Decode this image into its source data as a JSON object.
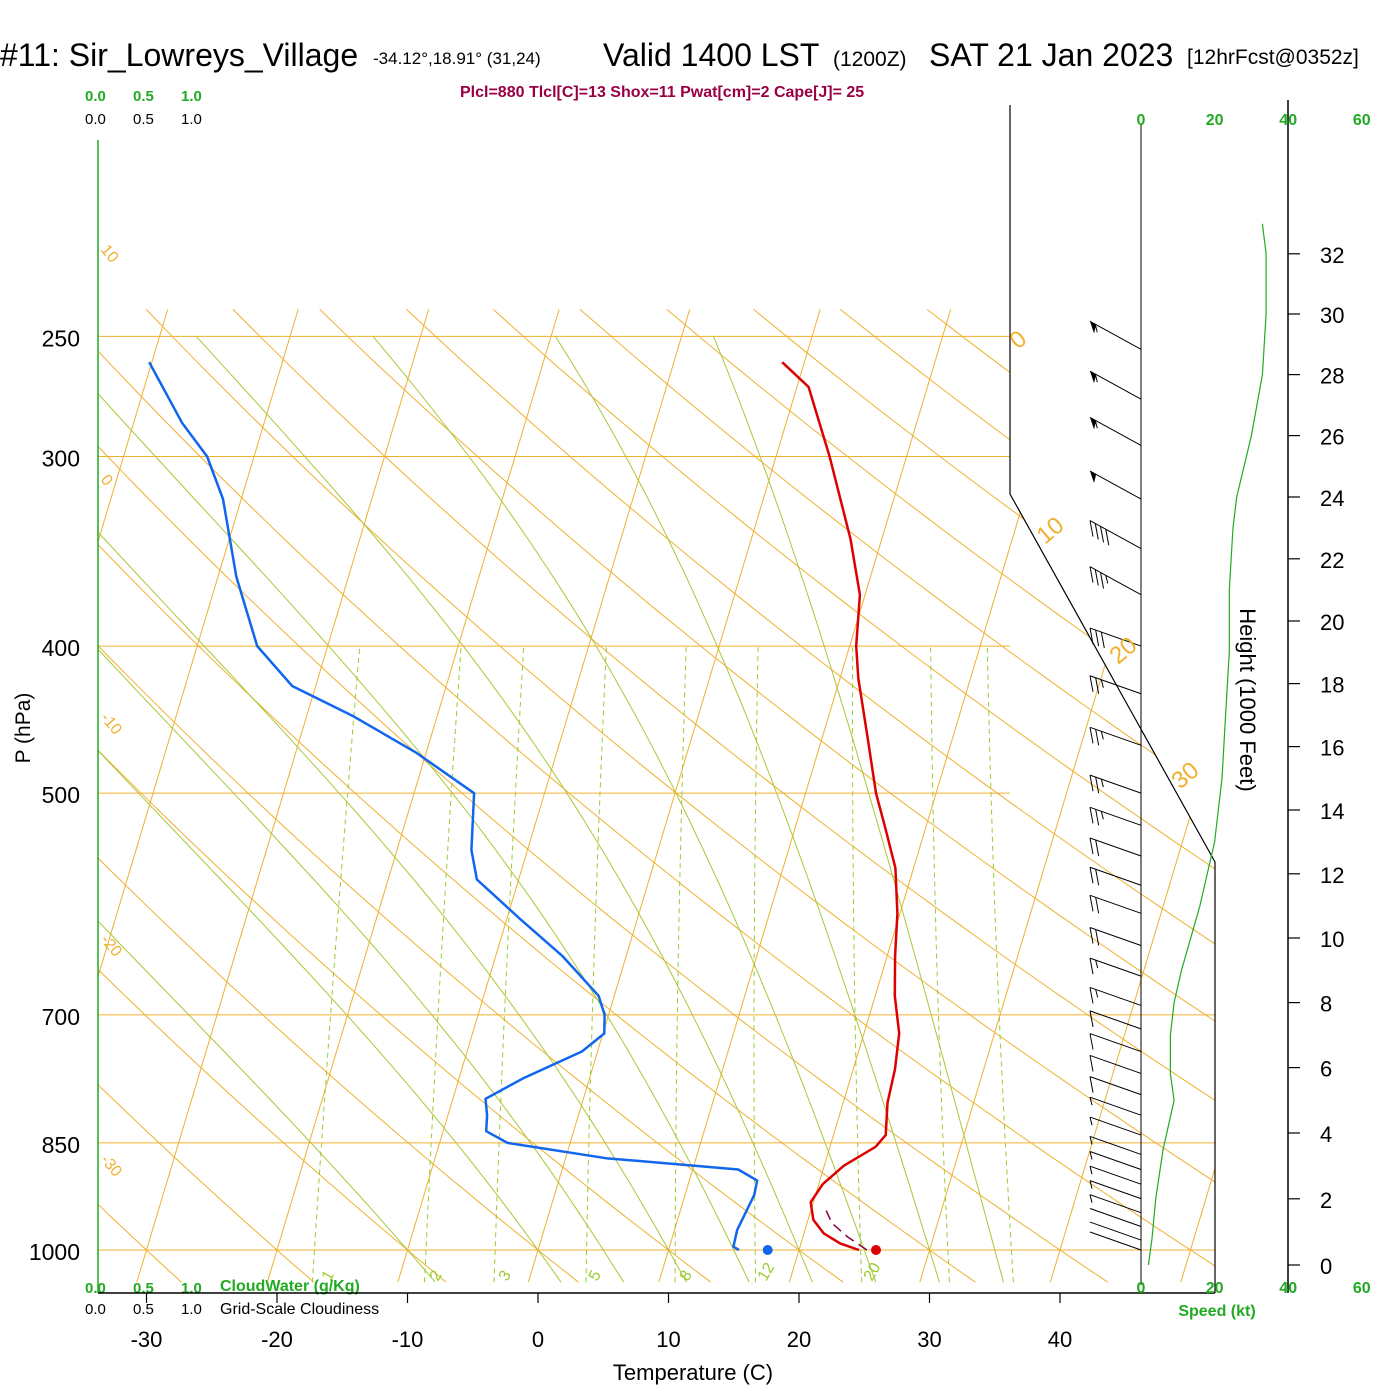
{
  "header": {
    "station": "#11: Sir_Lowreys_Village",
    "coords": "-34.12°,18.91° (31,24)",
    "valid": "Valid 1400 LST",
    "utc": "(1200Z)",
    "date": "SAT 21 Jan 2023",
    "forecast": "[12hrFcst@0352z]"
  },
  "indices": "Plcl=880 Tlcl[C]=13 Shox=11 Pwat[cm]=2 Cape[J]= 25",
  "cloud_scale": {
    "top_green": [
      "0.0",
      "0.5",
      "1.0"
    ],
    "top_black": [
      "0.0",
      "0.5",
      "1.0"
    ],
    "bottom_green": [
      "0.0",
      "0.5",
      "1.0"
    ],
    "bottom_black": [
      "0.0",
      "0.5",
      "1.0"
    ],
    "cloudwater_label": "CloudWater (g/Kg)",
    "cloudiness_label": "Grid-Scale Cloudiness"
  },
  "speed_axis": {
    "ticks": [
      "0",
      "20",
      "40",
      "60"
    ],
    "label": "Speed (kt)"
  },
  "colors": {
    "temperature": "#dd0000",
    "dewpoint": "#1166ee",
    "isobar_isotherm": "#f0b030",
    "dry_adiabat": "#a8c838",
    "mixing_ratio": "#99cc33",
    "axis_green": "#22aa22",
    "parcel": "#880044"
  },
  "chart_data": {
    "type": "line",
    "subtype": "skew-T log-P sounding",
    "xlabel": "Temperature (C)",
    "ylabel": "P (hPa)",
    "right_ylabel": "Height (1000 Feet)",
    "x_ticks": [
      "-30",
      "-20",
      "-10",
      "0",
      "10",
      "20",
      "30",
      "40"
    ],
    "p_ticks": [
      "250",
      "300",
      "400",
      "500",
      "700",
      "850",
      "1000"
    ],
    "p_values": [
      250,
      300,
      400,
      500,
      700,
      850,
      1000
    ],
    "height_ticks": [
      "32",
      "30",
      "28",
      "26",
      "24",
      "22",
      "20",
      "18",
      "16",
      "14",
      "12",
      "10",
      "8",
      "6",
      "4",
      "2",
      "0"
    ],
    "isotherm_labels": [
      "10",
      "0",
      "-10",
      "-20",
      "-30"
    ],
    "right_isotherm_labels": [
      "0",
      "10",
      "20",
      "30"
    ],
    "mixing_ratio_labels": [
      "1",
      "2",
      "3",
      "5",
      "8",
      "12",
      "20"
    ],
    "temperature_series": {
      "name": "Temperature",
      "points": [
        {
          "p": 1000,
          "t": 24.6
        },
        {
          "p": 990,
          "t": 23.0
        },
        {
          "p": 975,
          "t": 21.5
        },
        {
          "p": 955,
          "t": 20.4
        },
        {
          "p": 930,
          "t": 19.8
        },
        {
          "p": 905,
          "t": 20.3
        },
        {
          "p": 880,
          "t": 21.5
        },
        {
          "p": 855,
          "t": 23.5
        },
        {
          "p": 840,
          "t": 24.0
        },
        {
          "p": 800,
          "t": 23.4
        },
        {
          "p": 760,
          "t": 23.2
        },
        {
          "p": 720,
          "t": 22.7
        },
        {
          "p": 680,
          "t": 21.5
        },
        {
          "p": 640,
          "t": 20.6
        },
        {
          "p": 600,
          "t": 19.8
        },
        {
          "p": 560,
          "t": 18.6
        },
        {
          "p": 525,
          "t": 16.8
        },
        {
          "p": 500,
          "t": 15.4
        },
        {
          "p": 460,
          "t": 13.5
        },
        {
          "p": 420,
          "t": 11.4
        },
        {
          "p": 400,
          "t": 10.5
        },
        {
          "p": 370,
          "t": 9.6
        },
        {
          "p": 340,
          "t": 7.6
        },
        {
          "p": 300,
          "t": 4.1
        },
        {
          "p": 270,
          "t": 0.9
        },
        {
          "p": 260,
          "t": -1.7
        }
      ]
    },
    "dewpoint_series": {
      "name": "Dewpoint",
      "points": [
        {
          "p": 1000,
          "t": 15.4
        },
        {
          "p": 995,
          "t": 14.9
        },
        {
          "p": 970,
          "t": 14.8
        },
        {
          "p": 920,
          "t": 15.3
        },
        {
          "p": 900,
          "t": 15.2
        },
        {
          "p": 885,
          "t": 13.5
        },
        {
          "p": 870,
          "t": 3.1
        },
        {
          "p": 850,
          "t": -4.8
        },
        {
          "p": 835,
          "t": -6.7
        },
        {
          "p": 815,
          "t": -7.0
        },
        {
          "p": 795,
          "t": -7.5
        },
        {
          "p": 770,
          "t": -5.0
        },
        {
          "p": 740,
          "t": -1.2
        },
        {
          "p": 720,
          "t": 0.1
        },
        {
          "p": 700,
          "t": -0.3
        },
        {
          "p": 680,
          "t": -1.2
        },
        {
          "p": 640,
          "t": -4.9
        },
        {
          "p": 605,
          "t": -9.0
        },
        {
          "p": 570,
          "t": -13.2
        },
        {
          "p": 545,
          "t": -14.3
        },
        {
          "p": 520,
          "t": -14.9
        },
        {
          "p": 500,
          "t": -15.4
        },
        {
          "p": 470,
          "t": -20.8
        },
        {
          "p": 445,
          "t": -26.4
        },
        {
          "p": 425,
          "t": -31.8
        },
        {
          "p": 400,
          "t": -35.4
        },
        {
          "p": 360,
          "t": -38.6
        },
        {
          "p": 320,
          "t": -41.4
        },
        {
          "p": 300,
          "t": -43.6
        },
        {
          "p": 285,
          "t": -46.3
        },
        {
          "p": 260,
          "t": -50.2
        }
      ]
    },
    "parcel_series": {
      "name": "Parcel",
      "points": [
        {
          "p": 1000,
          "t": 25.2
        },
        {
          "p": 980,
          "t": 23.4
        },
        {
          "p": 960,
          "t": 21.9
        },
        {
          "p": 940,
          "t": 21.1
        }
      ]
    },
    "surface_markers": {
      "temperature": 25.9,
      "dewpoint": 17.6
    },
    "wind_speed_profile": [
      {
        "h": 0.0,
        "kt": 2
      },
      {
        "h": 0.8,
        "kt": 3
      },
      {
        "h": 2.0,
        "kt": 4
      },
      {
        "h": 3.5,
        "kt": 6
      },
      {
        "h": 5.0,
        "kt": 9
      },
      {
        "h": 5.8,
        "kt": 8
      },
      {
        "h": 7.0,
        "kt": 8
      },
      {
        "h": 8.0,
        "kt": 9
      },
      {
        "h": 9.0,
        "kt": 11
      },
      {
        "h": 11.0,
        "kt": 16
      },
      {
        "h": 13.0,
        "kt": 20
      },
      {
        "h": 15.0,
        "kt": 22
      },
      {
        "h": 17.0,
        "kt": 23
      },
      {
        "h": 19.0,
        "kt": 24
      },
      {
        "h": 21.0,
        "kt": 24
      },
      {
        "h": 23.0,
        "kt": 25
      },
      {
        "h": 24.0,
        "kt": 26
      },
      {
        "h": 26.0,
        "kt": 30
      },
      {
        "h": 28.0,
        "kt": 33
      },
      {
        "h": 30.0,
        "kt": 34
      },
      {
        "h": 32.0,
        "kt": 34
      },
      {
        "h": 33.0,
        "kt": 33
      }
    ],
    "wind_barbs": [
      {
        "p": 1000,
        "kt": 3
      },
      {
        "p": 985,
        "kt": 4
      },
      {
        "p": 965,
        "kt": 4
      },
      {
        "p": 945,
        "kt": 5
      },
      {
        "p": 925,
        "kt": 5
      },
      {
        "p": 905,
        "kt": 5
      },
      {
        "p": 885,
        "kt": 6
      },
      {
        "p": 865,
        "kt": 7
      },
      {
        "p": 840,
        "kt": 9
      },
      {
        "p": 815,
        "kt": 9
      },
      {
        "p": 790,
        "kt": 10
      },
      {
        "p": 765,
        "kt": 11
      },
      {
        "p": 740,
        "kt": 12
      },
      {
        "p": 715,
        "kt": 13
      },
      {
        "p": 690,
        "kt": 15
      },
      {
        "p": 660,
        "kt": 18
      },
      {
        "p": 630,
        "kt": 20
      },
      {
        "p": 600,
        "kt": 22
      },
      {
        "p": 575,
        "kt": 23
      },
      {
        "p": 550,
        "kt": 24
      },
      {
        "p": 525,
        "kt": 25
      },
      {
        "p": 500,
        "kt": 25
      },
      {
        "p": 465,
        "kt": 26
      },
      {
        "p": 430,
        "kt": 27
      },
      {
        "p": 400,
        "kt": 30
      },
      {
        "p": 370,
        "kt": 35
      },
      {
        "p": 345,
        "kt": 40
      },
      {
        "p": 320,
        "kt": 50
      },
      {
        "p": 295,
        "kt": 55
      },
      {
        "p": 275,
        "kt": 55
      },
      {
        "p": 255,
        "kt": 55
      }
    ]
  }
}
